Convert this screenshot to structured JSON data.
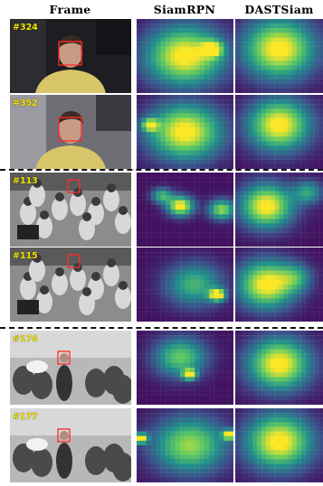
{
  "headers": {
    "frame": "Frame",
    "siamrpn": "SiamRPN",
    "dastsiam": "DASTSiam"
  },
  "rows": [
    {
      "frame_no": "#324",
      "scene": "face-dark"
    },
    {
      "frame_no": "#352",
      "scene": "face-bright"
    },
    {
      "frame_no": "#113",
      "scene": "football"
    },
    {
      "frame_no": "#115",
      "scene": "football"
    },
    {
      "frame_no": "#174",
      "scene": "crowd"
    },
    {
      "frame_no": "#177",
      "scene": "crowd"
    }
  ],
  "colormap": "viridis",
  "colors": {
    "box": "#ff2a2a",
    "frame_number": "#f5e600",
    "separator": "#111111"
  }
}
